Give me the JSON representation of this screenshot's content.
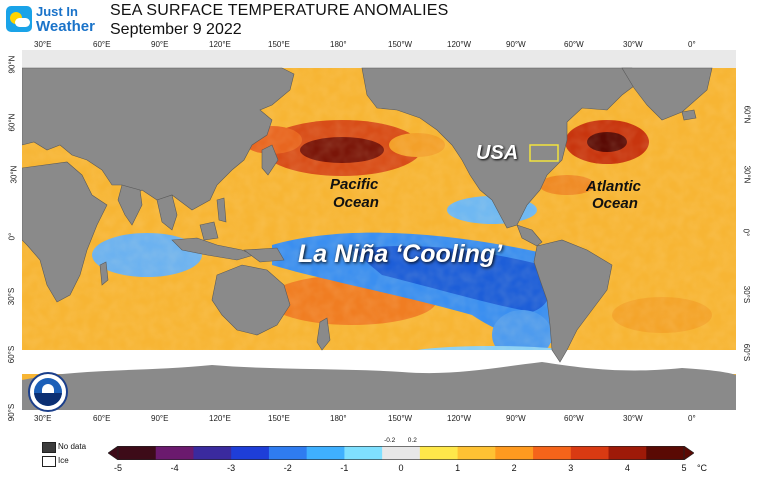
{
  "logo": {
    "line1": "Just In",
    "line2": "Weather"
  },
  "header": {
    "title": "SEA SURFACE TEMPERATURE ANOMALIES",
    "date": "September 9 2022"
  },
  "labels": {
    "usa": "USA",
    "pacific_1": "Pacific",
    "pacific_2": "Ocean",
    "atlantic_1": "Atlantic",
    "atlantic_2": "Ocean",
    "la_nina": "La Niña ‘Cooling’"
  },
  "axes": {
    "lon_top": [
      "30°E",
      "60°E",
      "90°E",
      "120°E",
      "150°E",
      "180°",
      "150°W",
      "120°W",
      "90°W",
      "60°W",
      "30°W",
      "0°"
    ],
    "lon_bottom": [
      "30°E",
      "60°E",
      "90°E",
      "120°E",
      "150°E",
      "180°",
      "150°W",
      "120°W",
      "90°W",
      "60°W",
      "30°W",
      "0°"
    ],
    "lat_left": [
      "90°N",
      "60°N",
      "30°N",
      "0°",
      "30°S",
      "60°S",
      "90°S"
    ],
    "lat_right": [
      "60°N",
      "30°N",
      "0°",
      "30°S",
      "60°S"
    ]
  },
  "legend": {
    "no_data": "No data",
    "ice": "Ice"
  },
  "colorbar": {
    "ticks": [
      "-5",
      "-4",
      "-3",
      "-2",
      "-1",
      "0",
      "1",
      "2",
      "3",
      "4",
      "5"
    ],
    "small_ticks": [
      "-0.2",
      "0.2"
    ],
    "unit": "°C",
    "colors": [
      "#3d0b18",
      "#6b1a6e",
      "#3a2a9e",
      "#1e3ed8",
      "#2f7cf0",
      "#3fb0ff",
      "#7fe0ff",
      "#e8e8e8",
      "#ffe84a",
      "#ffc233",
      "#ff9a1f",
      "#f5641a",
      "#d93a12",
      "#9e1a08",
      "#5a0a04"
    ]
  },
  "colors": {
    "land": "#8a8a8a",
    "ocean_warm": "#f8b032",
    "ocean_hot": "#e2571b",
    "ocean_cool": "#5aa8ee",
    "ocean_cold": "#1d63d8",
    "ice": "#ffffff",
    "label_box": "#f2e33c"
  },
  "icons": {
    "noaa": "noaa-seal-icon"
  }
}
